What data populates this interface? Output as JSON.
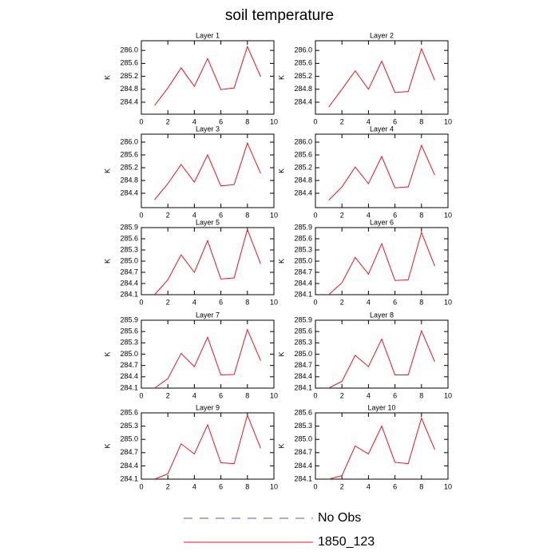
{
  "title": "soil temperature",
  "legend": [
    {
      "name": "No Obs",
      "color": "#5a5ab4",
      "dashed": true
    },
    {
      "name": "1850_123",
      "color": "#e8141e",
      "dashed": false
    }
  ],
  "chart_data": [
    {
      "type": "line",
      "title": "Layer 1",
      "y_label": "K",
      "x": [
        1,
        2,
        3,
        4,
        5,
        6,
        7,
        8,
        9
      ],
      "xlim": [
        0,
        10
      ],
      "xticks": [
        0,
        2,
        4,
        6,
        8,
        10
      ],
      "ylim": [
        284.03,
        286.3
      ],
      "yticks": [
        284.4,
        284.8,
        285.2,
        285.6,
        {
          "value": 286,
          "label": "286.0"
        }
      ],
      "series": [
        {
          "color": "#e8141e",
          "values": [
            284.3,
            284.84,
            285.46,
            284.89,
            285.75,
            284.79,
            284.84,
            286.12,
            285.19
          ]
        }
      ]
    },
    {
      "type": "line",
      "title": "Layer 2",
      "y_label": "K",
      "x": [
        1,
        2,
        3,
        4,
        5,
        6,
        7,
        8,
        9
      ],
      "xlim": [
        0,
        10
      ],
      "xticks": [
        0,
        2,
        4,
        6,
        8,
        10
      ],
      "ylim": [
        284.03,
        286.3
      ],
      "yticks": [
        284.4,
        284.8,
        285.2,
        285.6,
        {
          "value": 286,
          "label": "286.0"
        }
      ],
      "series": [
        {
          "color": "#e8141e",
          "values": [
            284.25,
            284.8,
            285.37,
            284.8,
            285.67,
            284.7,
            284.73,
            286.05,
            285.08
          ]
        }
      ]
    },
    {
      "type": "line",
      "title": "Layer 3",
      "y_label": "K",
      "x": [
        1,
        2,
        3,
        4,
        5,
        6,
        7,
        8,
        9
      ],
      "xlim": [
        0,
        10
      ],
      "xticks": [
        0,
        2,
        4,
        6,
        8,
        10
      ],
      "ylim": [
        283.95,
        286.25
      ],
      "yticks": [
        284.4,
        284.8,
        285.2,
        285.6,
        {
          "value": 286,
          "label": "286.0"
        }
      ],
      "series": [
        {
          "color": "#e8141e",
          "values": [
            284.2,
            284.7,
            285.3,
            284.75,
            285.6,
            284.63,
            284.67,
            285.97,
            285.02
          ]
        }
      ]
    },
    {
      "type": "line",
      "title": "Layer 4",
      "y_label": "K",
      "x": [
        1,
        2,
        3,
        4,
        5,
        6,
        7,
        8,
        9
      ],
      "xlim": [
        0,
        10
      ],
      "xticks": [
        0,
        2,
        4,
        6,
        8,
        10
      ],
      "ylim": [
        283.95,
        286.25
      ],
      "yticks": [
        284.4,
        284.8,
        285.2,
        285.6,
        {
          "value": 286,
          "label": "286.0"
        }
      ],
      "series": [
        {
          "color": "#e8141e",
          "values": [
            284.18,
            284.6,
            285.22,
            284.7,
            285.55,
            284.57,
            284.6,
            285.9,
            284.97
          ]
        }
      ]
    },
    {
      "type": "line",
      "title": "Layer 5",
      "y_label": "K",
      "x": [
        1,
        2,
        3,
        4,
        5,
        6,
        7,
        8,
        9
      ],
      "xlim": [
        0,
        10
      ],
      "xticks": [
        0,
        2,
        4,
        6,
        8,
        10
      ],
      "ylim": [
        284.1,
        285.9
      ],
      "yticks": [
        284.1,
        284.4,
        284.7,
        {
          "value": 285,
          "label": "285.0"
        },
        285.3,
        285.6,
        285.9
      ],
      "series": [
        {
          "color": "#e8141e",
          "values": [
            284.1,
            284.5,
            285.17,
            284.7,
            285.55,
            284.52,
            284.55,
            285.85,
            284.93
          ]
        }
      ]
    },
    {
      "type": "line",
      "title": "Layer 6",
      "y_label": "K",
      "x": [
        1,
        2,
        3,
        4,
        5,
        6,
        7,
        8,
        9
      ],
      "xlim": [
        0,
        10
      ],
      "xticks": [
        0,
        2,
        4,
        6,
        8,
        10
      ],
      "ylim": [
        284.1,
        285.9
      ],
      "yticks": [
        284.1,
        284.4,
        284.7,
        {
          "value": 285,
          "label": "285.0"
        },
        285.3,
        285.6,
        285.9
      ],
      "series": [
        {
          "color": "#e8141e",
          "values": [
            284.1,
            284.42,
            285.1,
            284.65,
            285.47,
            284.48,
            284.5,
            285.77,
            284.87
          ]
        }
      ]
    },
    {
      "type": "line",
      "title": "Layer 7",
      "y_label": "K",
      "x": [
        1,
        2,
        3,
        4,
        5,
        6,
        7,
        8,
        9
      ],
      "xlim": [
        0,
        10
      ],
      "xticks": [
        0,
        2,
        4,
        6,
        8,
        10
      ],
      "ylim": [
        284.1,
        285.9
      ],
      "yticks": [
        284.1,
        284.4,
        284.7,
        {
          "value": 285,
          "label": "285.0"
        },
        285.3,
        285.6,
        285.9
      ],
      "series": [
        {
          "color": "#e8141e",
          "values": [
            284.1,
            284.35,
            285.02,
            284.67,
            285.45,
            284.45,
            284.46,
            285.65,
            284.83
          ]
        }
      ]
    },
    {
      "type": "line",
      "title": "Layer 8",
      "y_label": "K",
      "x": [
        1,
        2,
        3,
        4,
        5,
        6,
        7,
        8,
        9
      ],
      "xlim": [
        0,
        10
      ],
      "xticks": [
        0,
        2,
        4,
        6,
        8,
        10
      ],
      "ylim": [
        284.1,
        285.9
      ],
      "yticks": [
        284.1,
        284.4,
        284.7,
        {
          "value": 285,
          "label": "285.0"
        },
        285.3,
        285.6,
        285.9
      ],
      "series": [
        {
          "color": "#e8141e",
          "values": [
            284.1,
            284.28,
            284.97,
            284.67,
            285.4,
            284.45,
            284.45,
            285.62,
            284.8
          ]
        }
      ]
    },
    {
      "type": "line",
      "title": "Layer 9",
      "y_label": "K",
      "x": [
        1,
        2,
        3,
        4,
        5,
        6,
        7,
        8,
        9
      ],
      "xlim": [
        0,
        10
      ],
      "xticks": [
        0,
        2,
        4,
        6,
        8,
        10
      ],
      "ylim": [
        284.1,
        285.6
      ],
      "yticks": [
        284.1,
        284.4,
        284.7,
        {
          "value": 285,
          "label": "285.0"
        },
        285.3,
        285.6
      ],
      "series": [
        {
          "color": "#e8141e",
          "values": [
            284.1,
            284.22,
            284.9,
            284.67,
            285.33,
            284.47,
            284.45,
            285.55,
            284.8
          ]
        }
      ]
    },
    {
      "type": "line",
      "title": "Layer 10",
      "y_label": "K",
      "x": [
        1,
        2,
        3,
        4,
        5,
        6,
        7,
        8,
        9
      ],
      "xlim": [
        0,
        10
      ],
      "xticks": [
        0,
        2,
        4,
        6,
        8,
        10
      ],
      "ylim": [
        284.1,
        285.6
      ],
      "yticks": [
        284.1,
        284.4,
        284.7,
        {
          "value": 285,
          "label": "285.0"
        },
        285.3,
        285.6
      ],
      "series": [
        {
          "color": "#e8141e",
          "values": [
            284.1,
            284.18,
            284.85,
            284.67,
            285.3,
            284.48,
            284.45,
            285.48,
            284.77
          ]
        }
      ]
    }
  ]
}
